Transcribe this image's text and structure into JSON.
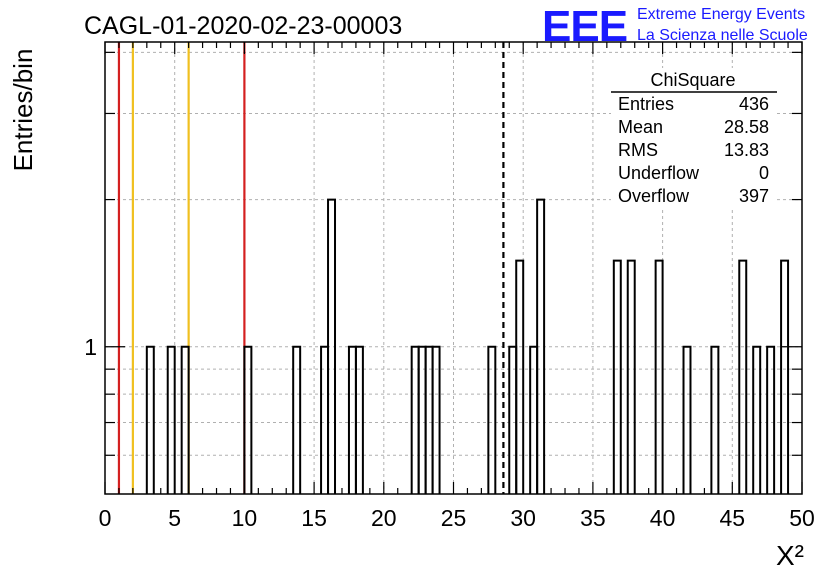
{
  "header": {
    "run_title": "CAGL-01-2020-02-23-00003",
    "logo_text": "EEE",
    "org_line1": "Extreme Energy Events",
    "org_line2": "La Scienza nelle Scuole"
  },
  "colors": {
    "logo": "#1a1aff",
    "red_line": "#d42020",
    "yellow_line": "#f0c020",
    "histogram": "#000000",
    "grid": "#b0b0b0"
  },
  "stats_box": {
    "title": "ChiSquare",
    "rows": [
      {
        "label": "Entries",
        "value": "436"
      },
      {
        "label": "Mean",
        "value": "28.58"
      },
      {
        "label": "RMS",
        "value": "13.83"
      },
      {
        "label": "Underflow",
        "value": "0"
      },
      {
        "label": "Overflow",
        "value": "397"
      }
    ]
  },
  "chart_data": {
    "type": "bar",
    "title": "CAGL-01-2020-02-23-00003",
    "xlabel": "X²",
    "ylabel": "Entries/bin",
    "xlim": [
      0,
      50
    ],
    "y_log_scale": true,
    "ylim": [
      0.5,
      4.2
    ],
    "x_ticks": [
      "0",
      "5",
      "10",
      "15",
      "20",
      "25",
      "30",
      "35",
      "40",
      "45",
      "50"
    ],
    "y_tick_labels": [
      {
        "value": 1,
        "label": "1"
      }
    ],
    "grid": true,
    "bin_width": 0.5,
    "bins": [
      {
        "x": 3.0,
        "count": 1
      },
      {
        "x": 4.5,
        "count": 1
      },
      {
        "x": 5.5,
        "count": 1
      },
      {
        "x": 10.0,
        "count": 1
      },
      {
        "x": 13.5,
        "count": 1
      },
      {
        "x": 15.5,
        "count": 1
      },
      {
        "x": 16.0,
        "count": 2
      },
      {
        "x": 17.5,
        "count": 1
      },
      {
        "x": 18.0,
        "count": 1
      },
      {
        "x": 22.0,
        "count": 1
      },
      {
        "x": 22.5,
        "count": 1
      },
      {
        "x": 23.0,
        "count": 1
      },
      {
        "x": 23.5,
        "count": 1
      },
      {
        "x": 27.5,
        "count": 1
      },
      {
        "x": 29.0,
        "count": 1
      },
      {
        "x": 29.5,
        "count": 1.5
      },
      {
        "x": 30.5,
        "count": 1
      },
      {
        "x": 31.0,
        "count": 2
      },
      {
        "x": 36.5,
        "count": 1.5
      },
      {
        "x": 37.5,
        "count": 1.5
      },
      {
        "x": 39.5,
        "count": 1.5
      },
      {
        "x": 41.5,
        "count": 1
      },
      {
        "x": 43.5,
        "count": 1
      },
      {
        "x": 45.5,
        "count": 1.5
      },
      {
        "x": 46.5,
        "count": 1
      },
      {
        "x": 47.5,
        "count": 1
      },
      {
        "x": 48.5,
        "count": 1.5
      }
    ],
    "reference_lines": [
      {
        "x": 1.0,
        "color": "#d42020",
        "style": "solid"
      },
      {
        "x": 2.0,
        "color": "#f0c020",
        "style": "solid"
      },
      {
        "x": 6.0,
        "color": "#f0c020",
        "style": "solid"
      },
      {
        "x": 10.0,
        "color": "#d42020",
        "style": "solid"
      },
      {
        "x": 28.58,
        "color": "#000000",
        "style": "dashed"
      }
    ]
  }
}
